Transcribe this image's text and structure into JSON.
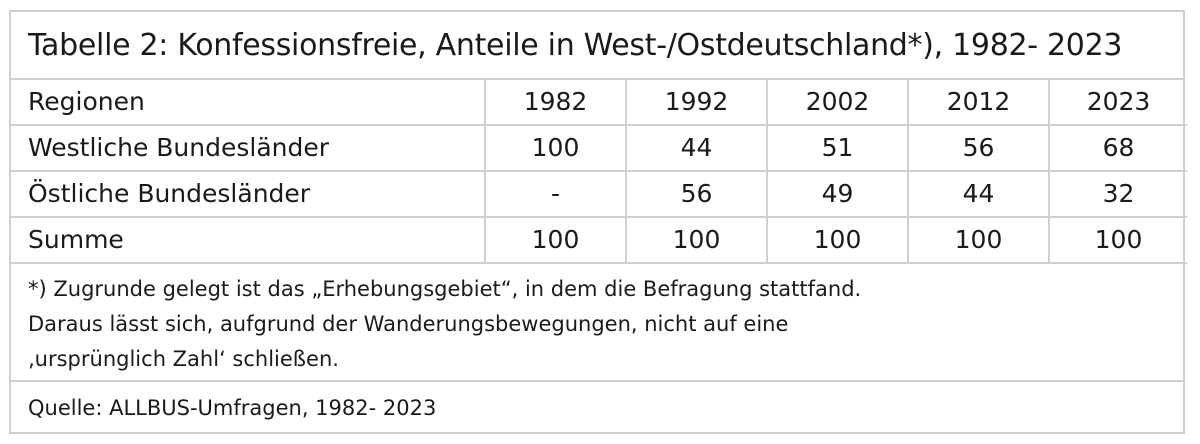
{
  "title": "Tabelle 2: Konfessionsfreie, Anteile in West-/Ostdeutschland*), 1982- 2023",
  "header": {
    "region_label": "Regionen",
    "years": [
      "1982",
      "1992",
      "2002",
      "2012",
      "2023"
    ]
  },
  "rows": [
    {
      "label": "Westliche Bundesländer",
      "values": [
        "100",
        "44",
        "51",
        "56",
        "68"
      ]
    },
    {
      "label": "Östliche Bundesländer",
      "values": [
        "-",
        "56",
        "49",
        "44",
        "32"
      ]
    },
    {
      "label": "Summe",
      "values": [
        "100",
        "100",
        "100",
        "100",
        "100"
      ]
    }
  ],
  "footnote": {
    "lines": [
      "*) Zugrunde gelegt ist das „Erhebungsgebiet“, in dem die Befragung stattfand.",
      "Daraus lässt sich, aufgrund der Wanderungsbewegungen, nicht auf eine",
      "‚ursprünglich Zahl‘ schließen."
    ]
  },
  "source": "Quelle: ALLBUS-Umfragen, 1982- 2023",
  "chart_data": {
    "type": "table",
    "title": "Tabelle 2: Konfessionsfreie, Anteile in West-/Ostdeutschland*), 1982- 2023",
    "columns": [
      "Regionen",
      "1982",
      "1992",
      "2002",
      "2012",
      "2023"
    ],
    "rows": [
      [
        "Westliche Bundesländer",
        "100",
        "44",
        "51",
        "56",
        "68"
      ],
      [
        "Östliche Bundesländer",
        "-",
        "56",
        "49",
        "44",
        "32"
      ],
      [
        "Summe",
        "100",
        "100",
        "100",
        "100",
        "100"
      ]
    ]
  }
}
